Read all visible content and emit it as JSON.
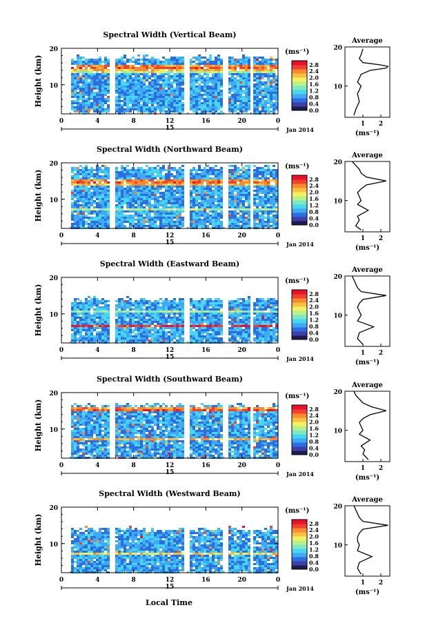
{
  "figure": {
    "x_axis_label": "Local Time"
  },
  "colorbar": {
    "unit_label": "(ms⁻¹)",
    "ticks": [
      "0.0",
      "0.4",
      "0.8",
      "1.2",
      "1.6",
      "2.0",
      "2.4",
      "2.8"
    ],
    "colors": [
      "#1c1c4e",
      "#3f3fa8",
      "#2a6ee0",
      "#3fa9f5",
      "#47d7f0",
      "#7ee8c0",
      "#b8f08a",
      "#f0f060",
      "#f8c040",
      "#f88a30",
      "#f04030",
      "#e8102a"
    ]
  },
  "chart_data": [
    {
      "type": "heatmap",
      "title": "Spectral Width (Vertical Beam)",
      "ylabel": "Height (km)",
      "x_ticks": [
        "0",
        "4",
        "8",
        "12",
        "16",
        "20",
        "0"
      ],
      "x_day": "15",
      "x_date": "Jan 2014",
      "y_ticks": [
        "20",
        "10"
      ],
      "xlim": [
        0,
        24
      ],
      "ylim": [
        2,
        20
      ],
      "gaps": [
        [
          5.3,
          5.9
        ],
        [
          13.6,
          14.2
        ],
        [
          17.7,
          18.3
        ],
        [
          20.7,
          21.2
        ]
      ],
      "layers": [
        {
          "h": 15.0,
          "w": 0.9,
          "v": 2.6
        },
        {
          "h": 14.1,
          "w": 0.4,
          "v": 1.8
        }
      ],
      "top_km": 17.0,
      "base_km": 3.0,
      "profile": {
        "title": "Average",
        "xlabel": "(ms⁻¹)",
        "x_ticks": [
          "1",
          "2"
        ],
        "y_ticks": [
          "20",
          "10"
        ],
        "xlim": [
          0,
          2.5
        ],
        "heights": [
          2.5,
          4,
          6,
          8,
          10,
          11,
          12,
          13,
          14,
          14.6,
          15,
          15.4,
          16,
          17,
          18,
          19.5
        ],
        "values": [
          0.5,
          0.6,
          0.8,
          0.7,
          0.9,
          0.7,
          0.8,
          0.9,
          1.4,
          2.3,
          2.4,
          2.0,
          1.0,
          0.8,
          0.9,
          1.0
        ]
      }
    },
    {
      "type": "heatmap",
      "title": "Spectral Width (Northward Beam)",
      "ylabel": "Height (km)",
      "x_ticks": [
        "0",
        "4",
        "8",
        "12",
        "16",
        "20",
        "0"
      ],
      "x_day": "15",
      "x_date": "Jan 2014",
      "y_ticks": [
        "20",
        "10"
      ],
      "xlim": [
        0,
        24
      ],
      "ylim": [
        2,
        20
      ],
      "gaps": [
        [
          5.3,
          5.9
        ],
        [
          13.6,
          14.2
        ],
        [
          17.7,
          18.3
        ],
        [
          20.7,
          21.2
        ]
      ],
      "layers": [
        {
          "h": 15.0,
          "w": 0.7,
          "v": 2.6
        },
        {
          "h": 7.5,
          "w": 0.5,
          "v": 1.6
        }
      ],
      "top_km": 18.5,
      "base_km": 2.5,
      "profile": {
        "title": "Average",
        "xlabel": "(ms⁻¹)",
        "x_ticks": [
          "1",
          "2"
        ],
        "y_ticks": [
          "20",
          "10"
        ],
        "xlim": [
          0,
          2.5
        ],
        "heights": [
          2.5,
          3.5,
          5,
          6,
          7.5,
          9,
          10,
          11,
          12,
          13,
          14,
          15,
          16,
          17,
          18,
          19,
          20
        ],
        "values": [
          0.9,
          0.6,
          0.8,
          0.7,
          1.3,
          0.7,
          0.9,
          0.8,
          0.7,
          0.9,
          1.2,
          2.3,
          1.2,
          0.9,
          0.8,
          0.6,
          0.4
        ]
      }
    },
    {
      "type": "heatmap",
      "title": "Spectral Width (Eastward Beam)",
      "ylabel": "Height (km)",
      "x_ticks": [
        "0",
        "4",
        "8",
        "12",
        "16",
        "20",
        "0"
      ],
      "x_day": "15",
      "x_date": "Jan 2014",
      "y_ticks": [
        "20",
        "10"
      ],
      "xlim": [
        0,
        24
      ],
      "ylim": [
        2,
        20
      ],
      "gaps": [
        [
          5.3,
          5.9
        ],
        [
          13.6,
          14.2
        ],
        [
          17.7,
          18.3
        ],
        [
          20.7,
          21.2
        ]
      ],
      "layers": [
        {
          "h": 7.0,
          "w": 0.4,
          "v": 2.8
        },
        {
          "h": 11.0,
          "w": 0.3,
          "v": 1.6
        }
      ],
      "top_km": 13.5,
      "base_km": 2.5,
      "profile": {
        "title": "Average",
        "xlabel": "(ms⁻¹)",
        "x_ticks": [
          "1",
          "2"
        ],
        "y_ticks": [
          "20",
          "10"
        ],
        "xlim": [
          0,
          2.5
        ],
        "heights": [
          2.5,
          4,
          5.5,
          7,
          8.5,
          10,
          11,
          12,
          13,
          14,
          15,
          16,
          17,
          18,
          19,
          20
        ],
        "values": [
          1.0,
          0.7,
          0.8,
          1.6,
          0.7,
          0.9,
          0.8,
          0.7,
          0.8,
          1.0,
          2.3,
          0.9,
          0.7,
          0.6,
          0.5,
          0.4
        ]
      }
    },
    {
      "type": "heatmap",
      "title": "Spectral Width (Southward Beam)",
      "ylabel": "Height (km)",
      "x_ticks": [
        "0",
        "4",
        "8",
        "12",
        "16",
        "20",
        "0"
      ],
      "x_day": "15",
      "x_date": "Jan 2014",
      "y_ticks": [
        "20",
        "10"
      ],
      "xlim": [
        0,
        24
      ],
      "ylim": [
        2,
        20
      ],
      "gaps": [
        [
          5.3,
          5.9
        ],
        [
          13.6,
          14.2
        ],
        [
          17.7,
          18.3
        ],
        [
          20.7,
          21.2
        ]
      ],
      "layers": [
        {
          "h": 15.5,
          "w": 0.6,
          "v": 2.6
        },
        {
          "h": 7.5,
          "w": 0.4,
          "v": 2.2
        }
      ],
      "top_km": 16.0,
      "base_km": 2.5,
      "profile": {
        "title": "Average",
        "xlabel": "(ms⁻¹)",
        "x_ticks": [
          "1",
          "2"
        ],
        "y_ticks": [
          "20",
          "10"
        ],
        "xlim": [
          0,
          2.5
        ],
        "heights": [
          2.5,
          4,
          5,
          6,
          7.5,
          9,
          10,
          11,
          12,
          13,
          14,
          15,
          16,
          17,
          18,
          19,
          20
        ],
        "values": [
          1.3,
          1.0,
          1.1,
          0.9,
          1.4,
          0.8,
          1.0,
          0.9,
          0.8,
          1.0,
          1.4,
          2.3,
          1.5,
          1.0,
          0.8,
          0.6,
          0.5
        ]
      }
    },
    {
      "type": "heatmap",
      "title": "Spectral Width (Westward Beam)",
      "ylabel": "Height (km)",
      "x_ticks": [
        "0",
        "4",
        "8",
        "12",
        "16",
        "20",
        "0"
      ],
      "x_day": "15",
      "x_date": "Jan 2014",
      "y_ticks": [
        "20",
        "10"
      ],
      "xlim": [
        0,
        24
      ],
      "ylim": [
        2,
        20
      ],
      "gaps": [
        [
          5.3,
          5.9
        ],
        [
          13.6,
          14.2
        ],
        [
          17.7,
          18.3
        ],
        [
          20.7,
          21.2
        ]
      ],
      "layers": [
        {
          "h": 15.0,
          "w": 0.5,
          "v": 2.8
        },
        {
          "h": 7.5,
          "w": 0.4,
          "v": 2.0
        }
      ],
      "top_km": 13.5,
      "base_km": 2.5,
      "profile": {
        "title": "Average",
        "xlabel": "(ms⁻¹)",
        "x_ticks": [
          "1",
          "2"
        ],
        "y_ticks": [
          "20",
          "10"
        ],
        "xlim": [
          0,
          2.5
        ],
        "heights": [
          2.5,
          4,
          5.5,
          7,
          8.5,
          10,
          11,
          12,
          13,
          14,
          15,
          16,
          17,
          18,
          19,
          20
        ],
        "values": [
          0.9,
          0.7,
          0.8,
          1.5,
          0.7,
          0.8,
          0.7,
          0.7,
          0.8,
          1.0,
          2.4,
          1.0,
          0.8,
          0.7,
          0.6,
          0.5
        ]
      }
    }
  ]
}
